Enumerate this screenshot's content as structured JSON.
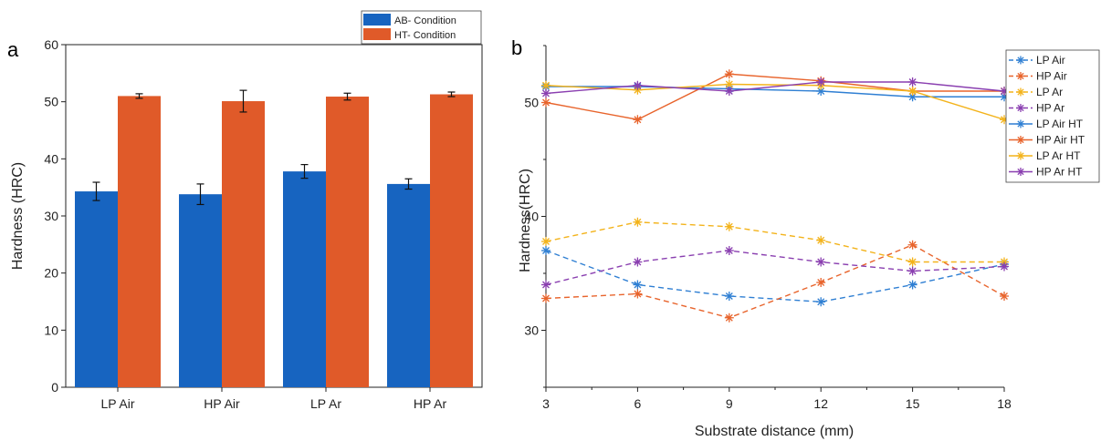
{
  "chart_data": [
    {
      "panel": "a",
      "type": "bar",
      "categories": [
        "LP Air",
        "HP Air",
        "LP Ar",
        "HP Ar"
      ],
      "series": [
        {
          "name": "AB- Condition",
          "color": "#1764c0",
          "values": [
            34.3,
            33.8,
            37.8,
            35.6
          ],
          "errors": [
            1.6,
            1.8,
            1.2,
            0.9
          ]
        },
        {
          "name": "HT- Condition",
          "color": "#e05a29",
          "values": [
            51.0,
            50.1,
            50.9,
            51.3
          ],
          "errors": [
            0.4,
            1.9,
            0.6,
            0.4
          ]
        }
      ],
      "ylabel": "Hardness (HRC)",
      "ylim": [
        0,
        60
      ],
      "yticks": [
        0,
        10,
        20,
        30,
        40,
        50,
        60
      ],
      "legend": "top-right"
    },
    {
      "panel": "b",
      "type": "line",
      "x": [
        3,
        6,
        9,
        12,
        15,
        18
      ],
      "series": [
        {
          "name": "LP Air",
          "color": "#2f7fd3",
          "dash": true,
          "values": [
            37.0,
            34.0,
            33.0,
            32.5,
            34.0,
            35.8
          ]
        },
        {
          "name": "HP Air",
          "color": "#e8642c",
          "dash": true,
          "values": [
            32.8,
            33.2,
            31.1,
            34.2,
            37.5,
            33.0
          ]
        },
        {
          "name": "LP Ar",
          "color": "#f3b31b",
          "dash": true,
          "values": [
            37.8,
            39.5,
            39.1,
            37.9,
            36.0,
            36.0
          ]
        },
        {
          "name": "HP Ar",
          "color": "#8a3fb0",
          "dash": true,
          "values": [
            34.0,
            36.0,
            37.0,
            36.0,
            35.2,
            35.6
          ]
        },
        {
          "name": "LP Air HT",
          "color": "#2f7fd3",
          "dash": false,
          "values": [
            51.4,
            51.4,
            51.2,
            51.0,
            50.5,
            50.5
          ]
        },
        {
          "name": "HP Air HT",
          "color": "#e8642c",
          "dash": false,
          "values": [
            50.0,
            48.5,
            52.5,
            51.9,
            51.0,
            51.0
          ]
        },
        {
          "name": "LP Ar HT",
          "color": "#f3b31b",
          "dash": false,
          "values": [
            51.5,
            51.1,
            51.6,
            51.5,
            51.0,
            48.5
          ]
        },
        {
          "name": "HP Ar HT",
          "color": "#8a3fb0",
          "dash": false,
          "values": [
            50.8,
            51.5,
            51.0,
            51.8,
            51.8,
            51.0
          ]
        }
      ],
      "xlabel": "Substrate distance (mm)",
      "ylabel": "Hardness(HRC)",
      "xlim": [
        3,
        18
      ],
      "ylim": [
        25,
        55
      ],
      "xticks": [
        3,
        6,
        9,
        12,
        15,
        18
      ],
      "yticks": [
        30,
        40,
        50
      ],
      "legend": "right"
    }
  ],
  "panel_labels": {
    "a": "a",
    "b": "b"
  }
}
